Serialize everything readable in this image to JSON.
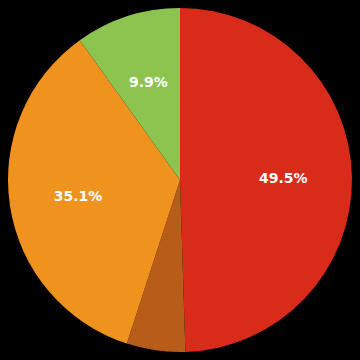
{
  "chart_data": {
    "type": "pie",
    "values": [
      49.5,
      5.5,
      35.1,
      9.9
    ],
    "value_labels": [
      "49.5%",
      null,
      "35.1%",
      "9.9%"
    ],
    "colors": [
      "#d92b1a",
      "#b85c1a",
      "#f0921e",
      "#8dc450"
    ],
    "data_labels": true
  }
}
